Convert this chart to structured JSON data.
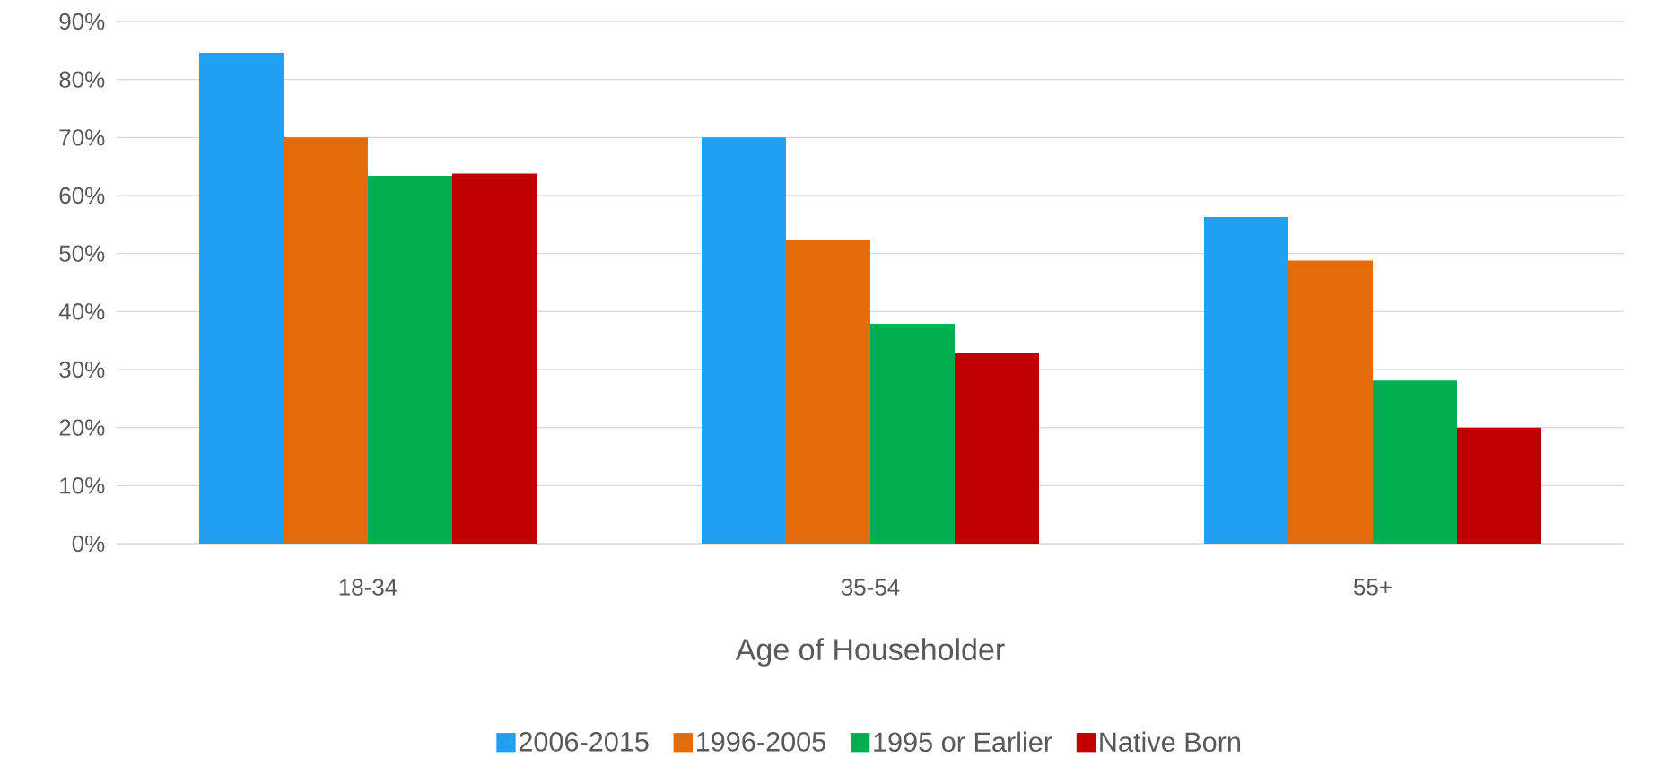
{
  "chart_data": {
    "type": "bar",
    "xlabel": "Age of Householder",
    "categories": [
      "18-34",
      "35-54",
      "55+"
    ],
    "series": [
      {
        "name": "2006-2015",
        "color": "#1fa0f2",
        "values": [
          84.6,
          70,
          56.3
        ]
      },
      {
        "name": "1996-2005",
        "color": "#e36c0a",
        "values": [
          70,
          52.3,
          48.8
        ]
      },
      {
        "name": "1995 or Earlier",
        "color": "#00b050",
        "values": [
          63.4,
          37.9,
          28.1
        ]
      },
      {
        "name": "Native Born",
        "color": "#c00000",
        "values": [
          63.8,
          32.8,
          20
        ]
      }
    ],
    "ylim": [
      0,
      90
    ],
    "yticks": [
      {
        "value": 0,
        "label": "0%"
      },
      {
        "value": 10,
        "label": "10%"
      },
      {
        "value": 20,
        "label": "20%"
      },
      {
        "value": 30,
        "label": "30%"
      },
      {
        "value": 40,
        "label": "40%"
      },
      {
        "value": 50,
        "label": "50%"
      },
      {
        "value": 60,
        "label": "60%"
      },
      {
        "value": 70,
        "label": "70%"
      },
      {
        "value": 80,
        "label": "80%"
      },
      {
        "value": 90,
        "label": "90%"
      }
    ],
    "grid": "y",
    "legend": "bottom"
  }
}
